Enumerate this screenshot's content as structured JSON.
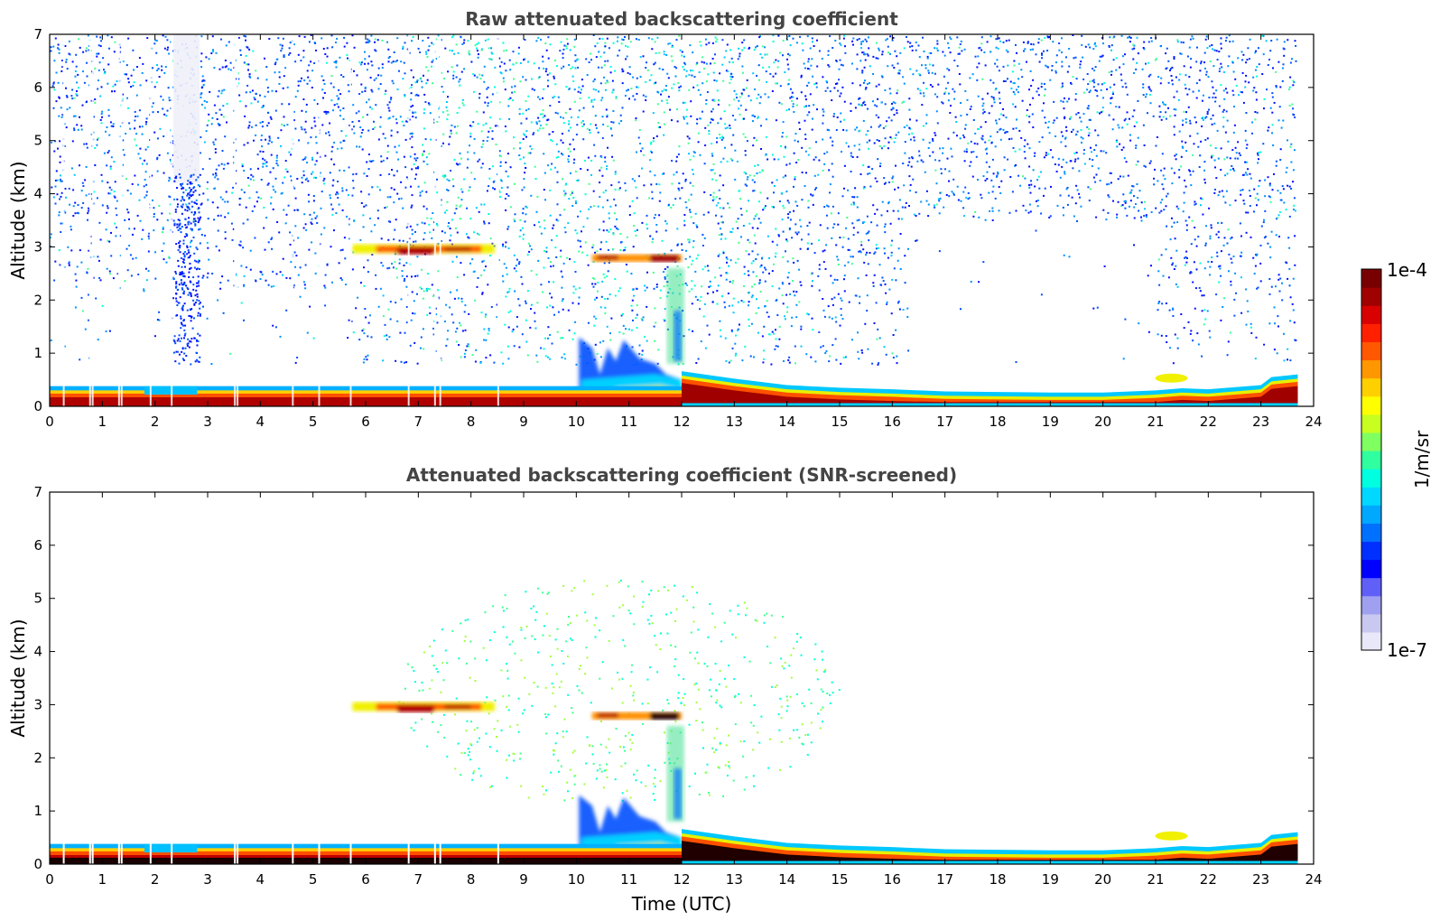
{
  "chart_data": [
    {
      "type": "heatmap",
      "title": "Raw attenuated backscattering coefficient",
      "xlabel": "",
      "ylabel": "Altitude (km)",
      "xlim": [
        0,
        24
      ],
      "ylim": [
        0,
        7
      ],
      "xticks": [
        "0",
        "1",
        "2",
        "3",
        "4",
        "5",
        "6",
        "7",
        "8",
        "9",
        "10",
        "11",
        "12",
        "13",
        "14",
        "15",
        "16",
        "17",
        "18",
        "19",
        "20",
        "21",
        "22",
        "23",
        "24"
      ],
      "yticks": [
        "0",
        "1",
        "2",
        "3",
        "4",
        "5",
        "6",
        "7"
      ],
      "grid": false,
      "features": [
        {
          "name": "boundary layer",
          "x": [
            0,
            23.7
          ],
          "y": [
            0,
            0.4
          ],
          "level": "high"
        },
        {
          "name": "elevated layer",
          "x": [
            12,
            23.7
          ],
          "y": [
            0.1,
            0.65
          ],
          "level": "high"
        },
        {
          "name": "cloud layer",
          "x": [
            5.7,
            8.5
          ],
          "y": [
            2.85,
            3.05
          ],
          "level": "high"
        },
        {
          "name": "cloud layer",
          "x": [
            10.3,
            12
          ],
          "y": [
            2.7,
            2.85
          ],
          "level": "high"
        },
        {
          "name": "plume",
          "x": [
            10,
            12
          ],
          "y": [
            0.2,
            1.3
          ],
          "level": "medium"
        },
        {
          "name": "column",
          "x": [
            11.7,
            12.1
          ],
          "y": [
            0.8,
            2.8
          ],
          "level": "medium"
        },
        {
          "name": "background noise",
          "x": [
            0,
            23.7
          ],
          "y": [
            1,
            7
          ],
          "level": "low"
        }
      ]
    },
    {
      "type": "heatmap",
      "title": "Attenuated backscattering coefficient (SNR-screened)",
      "xlabel": "Time (UTC)",
      "ylabel": "Altitude (km)",
      "xlim": [
        0,
        24
      ],
      "ylim": [
        0,
        7
      ],
      "xticks": [
        "0",
        "1",
        "2",
        "3",
        "4",
        "5",
        "6",
        "7",
        "8",
        "9",
        "10",
        "11",
        "12",
        "13",
        "14",
        "15",
        "16",
        "17",
        "18",
        "19",
        "20",
        "21",
        "22",
        "23",
        "24"
      ],
      "yticks": [
        "0",
        "1",
        "2",
        "3",
        "4",
        "5",
        "6",
        "7"
      ],
      "grid": false,
      "features": [
        {
          "name": "boundary layer",
          "x": [
            0,
            23.7
          ],
          "y": [
            0,
            0.35
          ],
          "level": "high"
        },
        {
          "name": "elevated layer",
          "x": [
            12,
            23.7
          ],
          "y": [
            0.1,
            0.65
          ],
          "level": "high"
        },
        {
          "name": "cloud layer",
          "x": [
            5.7,
            8.5
          ],
          "y": [
            2.85,
            3.05
          ],
          "level": "high"
        },
        {
          "name": "cloud layer",
          "x": [
            10.3,
            12
          ],
          "y": [
            2.7,
            2.85
          ],
          "level": "high"
        },
        {
          "name": "plume",
          "x": [
            10,
            12
          ],
          "y": [
            0.2,
            1.3
          ],
          "level": "medium"
        },
        {
          "name": "column",
          "x": [
            11.7,
            12.1
          ],
          "y": [
            0.8,
            2.8
          ],
          "level": "medium"
        },
        {
          "name": "scattered signal",
          "x": [
            6.5,
            15
          ],
          "y": [
            1.2,
            5.5
          ],
          "level": "medium-low"
        }
      ]
    }
  ],
  "colorbar": {
    "max_label": "1e-4",
    "min_label": "1e-7",
    "unit_label": "1/m/sr",
    "colormap": "jet",
    "colors": [
      "#f0f0fa",
      "#0000ff",
      "#00b4ff",
      "#00ffd0",
      "#a0ff60",
      "#ffff00",
      "#ff9000",
      "#ff2000",
      "#800000"
    ]
  }
}
